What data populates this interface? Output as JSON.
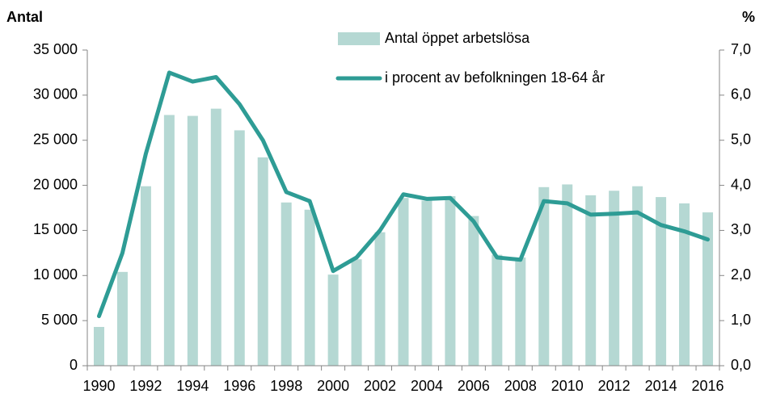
{
  "chart_data": {
    "type": "bar-line",
    "y_label": "Antal",
    "y2_label": "%",
    "categories": [
      "1990",
      null,
      "1992",
      null,
      "1994",
      null,
      "1996",
      null,
      "1998",
      null,
      "2000",
      null,
      "2002",
      null,
      "2004",
      null,
      "2006",
      null,
      "2008",
      null,
      "2010",
      null,
      "2012",
      null,
      "2014",
      null,
      "2016"
    ],
    "series": [
      {
        "name": "Antal öppet arbetslösa",
        "type": "bar",
        "color": "#b5d8d3",
        "values": [
          4300,
          10400,
          19900,
          27800,
          27700,
          28500,
          26100,
          23100,
          18100,
          17300,
          10100,
          11800,
          14800,
          18600,
          18300,
          18800,
          16600,
          12300,
          12000,
          19800,
          20100,
          18900,
          19400,
          19900,
          18700,
          18000,
          17000
        ]
      },
      {
        "name": "i procent av befolkningen 18-64 år",
        "type": "line",
        "axis": "y2",
        "color": "#2e9c95",
        "values": [
          1.1,
          2.5,
          4.7,
          6.5,
          6.3,
          6.4,
          5.8,
          5.0,
          3.85,
          3.65,
          2.1,
          2.4,
          3.0,
          3.8,
          3.7,
          3.72,
          3.2,
          2.4,
          2.35,
          3.65,
          3.6,
          3.35,
          3.37,
          3.4,
          3.12,
          2.98,
          2.8
        ]
      }
    ],
    "ylim": [
      0,
      35000
    ],
    "yticks": [
      0,
      {
        "value": 5000,
        "label": "5 000"
      },
      {
        "value": 10000,
        "label": "10 000"
      },
      {
        "value": 15000,
        "label": "15 000"
      },
      {
        "value": 20000,
        "label": "20 000"
      },
      {
        "value": 25000,
        "label": "25 000"
      },
      {
        "value": 30000,
        "label": "30 000"
      },
      {
        "value": 35000,
        "label": "35 000"
      }
    ],
    "y2lim": [
      0,
      7
    ],
    "y2ticks": [
      {
        "value": 0,
        "label": "0,0"
      },
      {
        "value": 1,
        "label": "1,0"
      },
      {
        "value": 2,
        "label": "2,0"
      },
      {
        "value": 3,
        "label": "3,0"
      },
      {
        "value": 4,
        "label": "4,0"
      },
      {
        "value": 5,
        "label": "5,0"
      },
      {
        "value": 6,
        "label": "6,0"
      },
      {
        "value": 7,
        "label": "7,0"
      }
    ],
    "grid": false
  }
}
